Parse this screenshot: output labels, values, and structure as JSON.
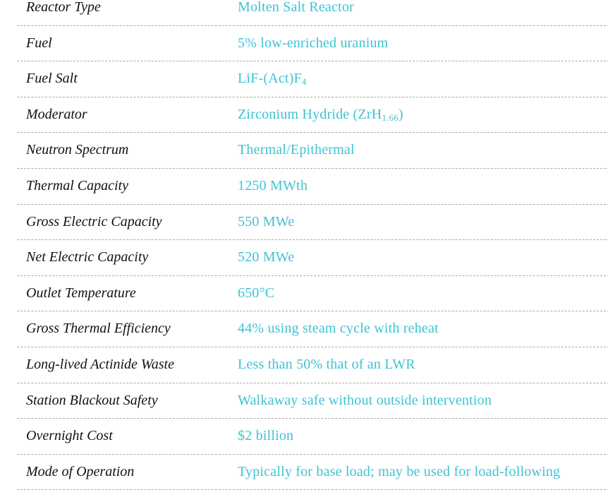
{
  "colors": {
    "label": "#111111",
    "value": "#3ec3d3",
    "divider": "#a8a8a8"
  },
  "rows": [
    {
      "label": "Reactor Type",
      "value": "Molten Salt Reactor",
      "sub": "",
      "suffix": ""
    },
    {
      "label": "Fuel",
      "value": "5% low-enriched uranium",
      "sub": "",
      "suffix": ""
    },
    {
      "label": "Fuel Salt",
      "value": "LiF-(Act)F",
      "sub": "4",
      "suffix": ""
    },
    {
      "label": "Moderator",
      "value": "Zirconium Hydride (ZrH",
      "sub": "1.66",
      "suffix": ")"
    },
    {
      "label": "Neutron Spectrum",
      "value": "Thermal/Epithermal",
      "sub": "",
      "suffix": ""
    },
    {
      "label": "Thermal Capacity",
      "value": "1250 MWth",
      "sub": "",
      "suffix": ""
    },
    {
      "label": "Gross Electric Capacity",
      "value": "550 MWe",
      "sub": "",
      "suffix": ""
    },
    {
      "label": "Net Electric Capacity",
      "value": "520 MWe",
      "sub": "",
      "suffix": ""
    },
    {
      "label": "Outlet Temperature",
      "value": "650°C",
      "sub": "",
      "suffix": ""
    },
    {
      "label": "Gross Thermal Efficiency",
      "value": "44% using steam cycle with reheat",
      "sub": "",
      "suffix": ""
    },
    {
      "label": "Long-lived Actinide Waste",
      "value": "Less than 50% that of an LWR",
      "sub": "",
      "suffix": ""
    },
    {
      "label": "Station Blackout Safety",
      "value": "Walkaway safe without outside intervention",
      "sub": "",
      "suffix": ""
    },
    {
      "label": "Overnight Cost",
      "value": "$2 billion",
      "sub": "",
      "suffix": ""
    },
    {
      "label": "Mode of Operation",
      "value": "Typically for base load; may be used for load-following",
      "sub": "",
      "suffix": ""
    }
  ]
}
